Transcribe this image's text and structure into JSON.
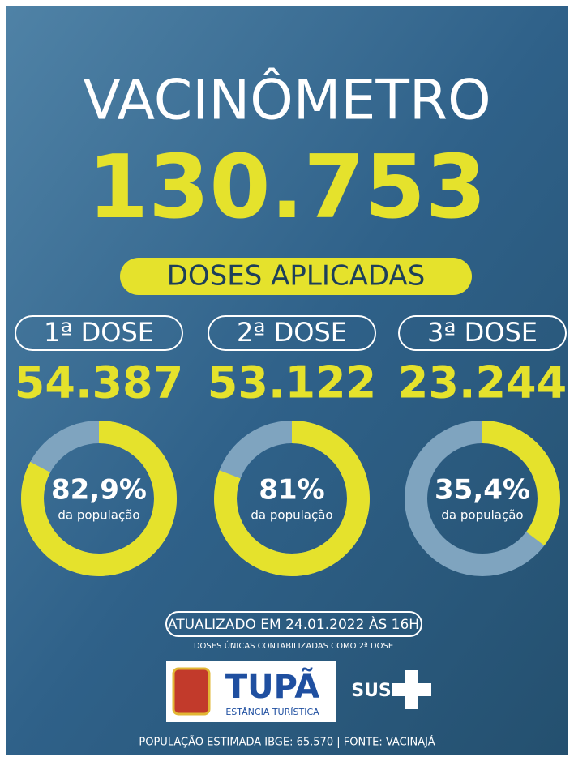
{
  "header": {
    "title": "VACINÔMETRO",
    "total": "130.753",
    "subtitle": "DOSES APLICADAS"
  },
  "doses": [
    {
      "title": "1ª DOSE",
      "count": "54.387",
      "percent": 82.9,
      "percent_label": "82,9%",
      "caption": "da população"
    },
    {
      "title": "2ª DOSE",
      "count": "53.122",
      "percent": 81,
      "percent_label": "81%",
      "caption": "da população"
    },
    {
      "title": "3ª DOSE",
      "count": "23.244",
      "percent": 35.4,
      "percent_label": "35,4%",
      "caption": "da população"
    }
  ],
  "footer": {
    "updated": "ATUALIZADO EM 24.01.2022 ÀS 16H",
    "note": "DOSES ÚNICAS CONTABILIZADAS COMO 2ª DOSE",
    "logo_name": "TUPÃ",
    "logo_subtitle": "ESTÂNCIA TURÍSTICA",
    "sus": "SUS",
    "source": "POPULAÇÃO ESTIMADA IBGE: 65.570 | FONTE: VACINAJÁ"
  }
}
